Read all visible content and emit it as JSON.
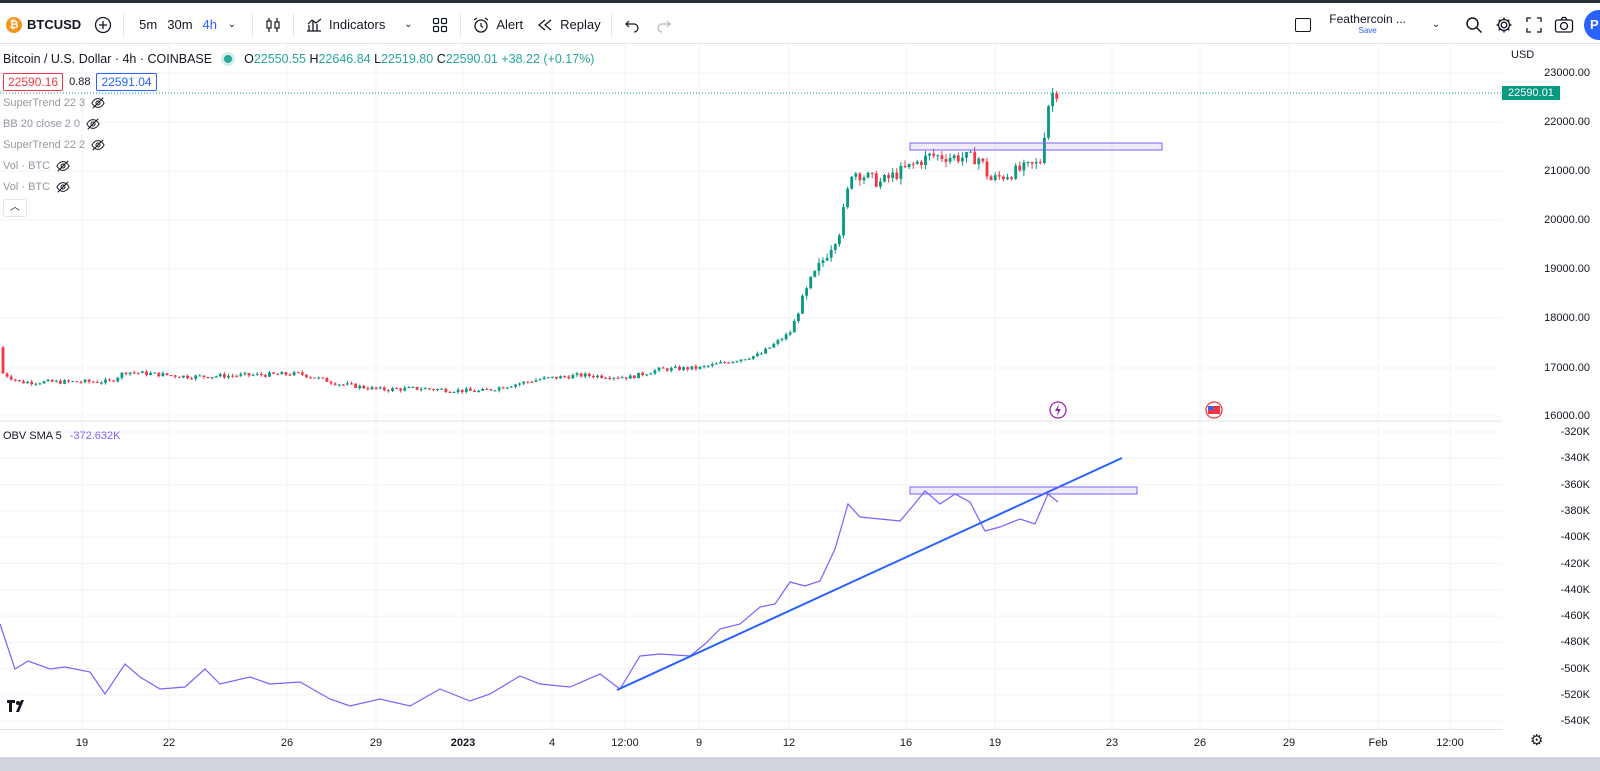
{
  "toolbar": {
    "symbol": "BTCUSD",
    "intervals": [
      {
        "label": "5m",
        "active": false
      },
      {
        "label": "30m",
        "active": false
      },
      {
        "label": "4h",
        "active": true
      }
    ],
    "indicators_label": "Indicators",
    "alert_label": "Alert",
    "replay_label": "Replay",
    "layout_name": "Feathercoin ...",
    "layout_save": "Save",
    "avatar_letter": "P"
  },
  "legend": {
    "title": "Bitcoin / U.S. Dollar · 4h · COINBASE",
    "open": "22550.55",
    "high": "22646.84",
    "low": "22519.80",
    "close": "22590.01",
    "change": "+38.22 (+0.17%)",
    "bid": "22590.16",
    "spread": "0.88",
    "ask": "22591.04",
    "indicators": [
      "SuperTrend 22 3",
      "BB 20 close 2 0",
      "SuperTrend 22 2",
      "Vol · BTC",
      "Vol · BTC"
    ]
  },
  "obv": {
    "label": "OBV SMA 5",
    "value": "-372.632K"
  },
  "price_scale": {
    "currency": "USD",
    "current_price": "22590.01",
    "ticks": [
      "23000.00",
      "22000.00",
      "21000.00",
      "20000.00",
      "19000.00",
      "18000.00",
      "17000.00",
      "16000.00"
    ]
  },
  "obv_scale": {
    "ticks": [
      "-320K",
      "-340K",
      "-360K",
      "-380K",
      "-400K",
      "-420K",
      "-440K",
      "-460K",
      "-480K",
      "-500K",
      "-520K",
      "-540K"
    ]
  },
  "time_axis": {
    "labels": [
      {
        "text": "19",
        "bold": false
      },
      {
        "text": "22",
        "bold": false
      },
      {
        "text": "26",
        "bold": false
      },
      {
        "text": "29",
        "bold": false
      },
      {
        "text": "2023",
        "bold": true
      },
      {
        "text": "4",
        "bold": false
      },
      {
        "text": "12:00",
        "bold": false
      },
      {
        "text": "9",
        "bold": false
      },
      {
        "text": "12",
        "bold": false
      },
      {
        "text": "16",
        "bold": false
      },
      {
        "text": "19",
        "bold": false
      },
      {
        "text": "23",
        "bold": false
      },
      {
        "text": "26",
        "bold": false
      },
      {
        "text": "29",
        "bold": false
      },
      {
        "text": "Feb",
        "bold": false
      },
      {
        "text": "12:00",
        "bold": false
      }
    ]
  },
  "colors": {
    "up": "#089981",
    "down": "#f23645",
    "obv_line": "#7b61ff",
    "trendline": "#2962ff"
  }
}
